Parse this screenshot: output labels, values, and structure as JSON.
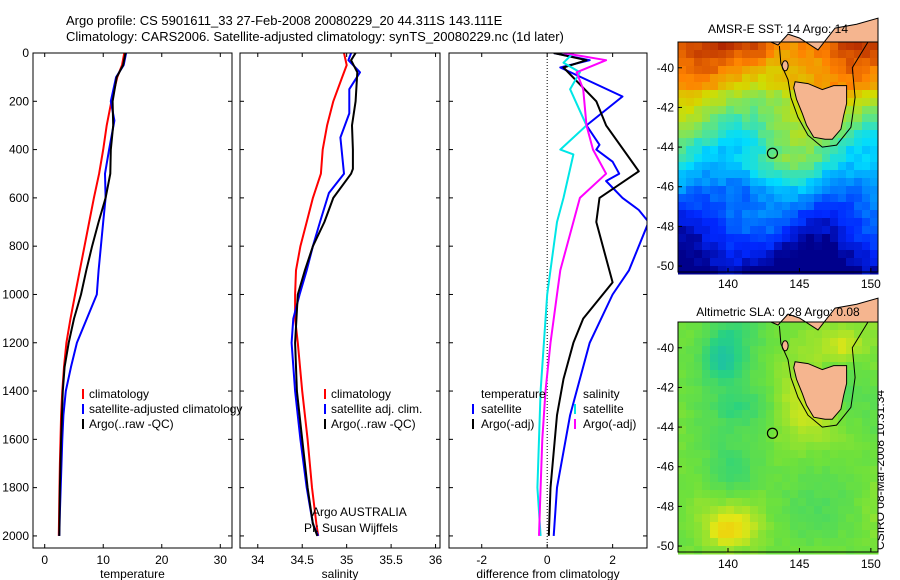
{
  "header": {
    "line1": "Argo profile: CS 5901611_33 27-Feb-2008 20080229_20 44.311S 143.111E",
    "line2": "Climatology: CARS2006. Satellite-adjusted climatology: synTS_20080229.nc (1d later)"
  },
  "footer": {
    "credit": "CSIRO 08-Mar-2008 10:31:34",
    "argo_note_line1": "Argo AUSTRALIA",
    "argo_note_line2": "PI: Susan Wijffels"
  },
  "colors": {
    "climatology": "#ff0000",
    "satellite": "#0000ff",
    "argo": "#000000",
    "salinity_satellite": "#00e6e6",
    "salinity_argo": "#ff00ff",
    "land": "#f5b58f"
  },
  "chart_data": [
    {
      "type": "line",
      "id": "temperature",
      "xlabel": "temperature",
      "ylabel": "",
      "xlim": [
        -2,
        32
      ],
      "ylim": [
        2050,
        0
      ],
      "y_reversed": true,
      "xticks": [
        0,
        10,
        20,
        30
      ],
      "yticks": [
        0,
        200,
        400,
        600,
        800,
        1000,
        1200,
        1400,
        1600,
        1800,
        2000
      ],
      "legend": [
        "climatology",
        "satellite-adjusted climatology",
        "Argo(..raw -QC)"
      ],
      "legend_position": "lower-right",
      "series": [
        {
          "name": "climatology",
          "color": "#ff0000",
          "x": [
            13.6,
            13.2,
            12.4,
            11.4,
            10.6,
            10.0,
            9.3,
            8.4,
            7.6,
            6.8,
            6.0,
            5.2,
            4.4,
            3.7,
            3.3,
            3.0,
            2.8,
            2.6,
            2.5,
            2.4
          ],
          "y": [
            0,
            50,
            100,
            200,
            300,
            400,
            500,
            600,
            700,
            800,
            900,
            1000,
            1100,
            1200,
            1300,
            1400,
            1500,
            1700,
            1850,
            2000
          ]
        },
        {
          "name": "satellite-adjusted climatology",
          "color": "#0000ff",
          "x": [
            13.9,
            13.5,
            12.2,
            11.3,
            11.9,
            11.0,
            10.3,
            10.4,
            10.0,
            9.6,
            9.2,
            8.9,
            5.5,
            4.5,
            3.6,
            3.2,
            3.0,
            2.8,
            2.6,
            2.5
          ],
          "y": [
            0,
            50,
            100,
            200,
            280,
            400,
            500,
            600,
            700,
            800,
            900,
            1000,
            1200,
            1300,
            1400,
            1500,
            1600,
            1750,
            1900,
            2000
          ]
        },
        {
          "name": "Argo(..raw -QC)",
          "color": "#000000",
          "x": [
            13.8,
            13.4,
            12.3,
            11.6,
            11.7,
            11.3,
            11.2,
            10.4,
            9.2,
            8.1,
            7.1,
            6.2,
            5.0,
            4.1,
            3.4,
            3.1,
            2.8,
            2.6,
            2.5
          ],
          "y": [
            0,
            50,
            100,
            200,
            300,
            400,
            500,
            600,
            700,
            800,
            900,
            1000,
            1100,
            1200,
            1300,
            1400,
            1600,
            1800,
            2000
          ]
        }
      ]
    },
    {
      "type": "line",
      "id": "salinity",
      "xlabel": "salinity",
      "ylabel": "",
      "xlim": [
        33.8,
        36.05
      ],
      "ylim": [
        2050,
        0
      ],
      "y_reversed": true,
      "xticks": [
        34,
        34.5,
        35,
        35.5,
        36
      ],
      "xticklabels": [
        "34",
        "34.5",
        "35",
        "35.5",
        "36"
      ],
      "legend": [
        "climatology",
        "satellite adj. clim.",
        "Argo(..raw -QC)"
      ],
      "legend_position": "lower-right",
      "series": [
        {
          "name": "climatology",
          "color": "#ff0000",
          "x": [
            34.97,
            35.0,
            34.95,
            34.85,
            34.78,
            34.73,
            34.71,
            34.62,
            34.55,
            34.48,
            34.43,
            34.42,
            34.42,
            34.45,
            34.5,
            34.56,
            34.61,
            34.66,
            34.68
          ],
          "y": [
            0,
            50,
            100,
            200,
            300,
            400,
            500,
            600,
            700,
            800,
            900,
            1000,
            1100,
            1200,
            1400,
            1600,
            1800,
            1950,
            2000
          ]
        },
        {
          "name": "satellite adj. clim.",
          "color": "#0000ff",
          "x": [
            35.05,
            35.02,
            35.15,
            35.03,
            35.03,
            34.93,
            34.97,
            34.8,
            34.7,
            34.62,
            34.55,
            34.47,
            34.4,
            34.38,
            34.42,
            34.48,
            34.55,
            34.62,
            34.68
          ],
          "y": [
            0,
            30,
            80,
            150,
            250,
            350,
            500,
            580,
            700,
            800,
            900,
            1000,
            1100,
            1200,
            1400,
            1600,
            1800,
            1950,
            2000
          ]
        },
        {
          "name": "Argo(..raw -QC)",
          "color": "#000000",
          "x": [
            35.1,
            35.05,
            35.12,
            35.1,
            35.06,
            35.07,
            35.07,
            35.05,
            34.85,
            34.75,
            34.62,
            34.53,
            34.45,
            34.42,
            34.44,
            34.5,
            34.56,
            34.62,
            34.67
          ],
          "y": [
            0,
            30,
            80,
            200,
            300,
            400,
            480,
            500,
            600,
            700,
            800,
            900,
            1000,
            1200,
            1400,
            1600,
            1800,
            1950,
            2000
          ]
        }
      ]
    },
    {
      "type": "line",
      "id": "difference",
      "xlabel": "difference from climatology",
      "ylabel": "",
      "xlim": [
        -3,
        3.05
      ],
      "ylim": [
        2050,
        0
      ],
      "y_reversed": true,
      "xticks": [
        -2,
        0,
        2
      ],
      "legend_groups": [
        {
          "title": "temperature",
          "items": [
            "satellite",
            "Argo(-adj)"
          ]
        },
        {
          "title": "salinity",
          "items": [
            "satellite",
            "Argo(-adj)"
          ]
        }
      ],
      "legend_position": "lower-center",
      "series": [
        {
          "name": "satellite",
          "group": "temperature",
          "color": "#0000ff",
          "x": [
            0.2,
            1.3,
            0.4,
            2.3,
            1.2,
            1.6,
            1.5,
            2.0,
            2.2,
            1.8,
            2.3,
            2.8,
            3.1,
            2.5,
            2.0,
            1.3,
            0.7,
            0.3,
            0.2
          ],
          "y": [
            0,
            30,
            60,
            180,
            300,
            380,
            400,
            450,
            500,
            530,
            600,
            650,
            700,
            900,
            1000,
            1200,
            1500,
            1800,
            2000
          ]
        },
        {
          "name": "Argo(-adj)",
          "group": "temperature",
          "color": "#000000",
          "x": [
            0.2,
            1.2,
            0.5,
            1.5,
            1.8,
            2.8,
            1.6,
            1.5,
            2.0,
            1.1,
            0.8,
            0.5,
            0.3,
            0.1,
            0.05
          ],
          "y": [
            0,
            30,
            60,
            200,
            300,
            490,
            600,
            700,
            950,
            1100,
            1200,
            1350,
            1500,
            1800,
            2000
          ]
        },
        {
          "name": "satellite",
          "group": "salinity",
          "color": "#00e6e6",
          "x": [
            0.8,
            0.5,
            1.0,
            0.7,
            1.2,
            0.4,
            0.8,
            0.5,
            0.3,
            0.2,
            0.0,
            -0.1,
            -0.2,
            -0.25,
            -0.3,
            -0.2
          ],
          "y": [
            0,
            40,
            80,
            150,
            300,
            400,
            420,
            600,
            700,
            800,
            1000,
            1200,
            1400,
            1600,
            1800,
            2000
          ]
        },
        {
          "name": "Argo(-adj)",
          "group": "salinity",
          "color": "#ff00ff",
          "x": [
            0.5,
            1.8,
            0.9,
            1.1,
            1.2,
            1.4,
            1.8,
            1.0,
            0.6,
            0.4,
            0.3,
            0.1,
            -0.05,
            -0.15,
            -0.2,
            -0.25
          ],
          "y": [
            0,
            30,
            80,
            150,
            300,
            400,
            500,
            600,
            800,
            900,
            1000,
            1200,
            1400,
            1600,
            1800,
            2000
          ]
        }
      ]
    },
    {
      "type": "heatmap",
      "id": "sst_map",
      "title": "AMSR-E SST: 14 Argo: 14",
      "xlim": [
        136.5,
        150.5
      ],
      "ylim": [
        -50.3,
        -38.7
      ],
      "xticks": [
        140,
        145,
        150
      ],
      "yticks": [
        -40,
        -42,
        -44,
        -46,
        -48,
        -50
      ],
      "argo_position": {
        "lon": 143.111,
        "lat": -44.311
      }
    },
    {
      "type": "heatmap",
      "id": "sla_map",
      "title": "Altimetric SLA: 0.28 Argo: 0.08",
      "xlim": [
        136.5,
        150.5
      ],
      "ylim": [
        -50.3,
        -38.7
      ],
      "xticks": [
        140,
        145,
        150
      ],
      "yticks": [
        -40,
        -42,
        -44,
        -46,
        -48,
        -50
      ],
      "argo_position": {
        "lon": 143.111,
        "lat": -44.311
      }
    }
  ]
}
